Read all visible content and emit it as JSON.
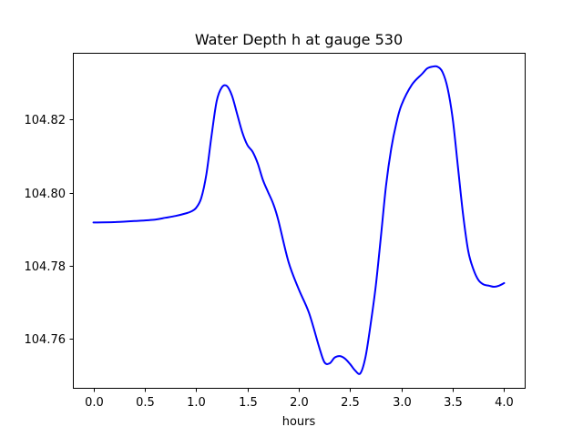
{
  "chart_data": {
    "type": "line",
    "title": "Water Depth h at gauge 530",
    "xlabel": "hours",
    "ylabel": "",
    "xlim": [
      -0.2,
      4.2
    ],
    "ylim": [
      104.7465,
      104.8383
    ],
    "x_ticks": [
      0.0,
      0.5,
      1.0,
      1.5,
      2.0,
      2.5,
      3.0,
      3.5,
      4.0
    ],
    "x_tick_labels": [
      "0.0",
      "0.5",
      "1.0",
      "1.5",
      "2.0",
      "2.5",
      "3.0",
      "3.5",
      "4.0"
    ],
    "y_ticks": [
      104.76,
      104.78,
      104.8,
      104.82
    ],
    "y_tick_labels": [
      "104.76",
      "104.78",
      "104.80",
      "104.82"
    ],
    "grid": false,
    "series": [
      {
        "color": "#0000ff",
        "x": [
          0.0,
          0.2,
          0.4,
          0.6,
          0.7,
          0.8,
          0.9,
          0.95,
          1.0,
          1.05,
          1.1,
          1.15,
          1.2,
          1.25,
          1.3,
          1.35,
          1.4,
          1.45,
          1.5,
          1.55,
          1.6,
          1.65,
          1.7,
          1.75,
          1.8,
          1.9,
          2.0,
          2.1,
          2.2,
          2.25,
          2.3,
          2.35,
          2.4,
          2.45,
          2.5,
          2.55,
          2.6,
          2.65,
          2.7,
          2.75,
          2.8,
          2.85,
          2.9,
          2.95,
          3.0,
          3.1,
          3.2,
          3.25,
          3.3,
          3.35,
          3.4,
          3.45,
          3.5,
          3.55,
          3.6,
          3.65,
          3.7,
          3.75,
          3.8,
          3.85,
          3.9,
          3.95,
          4.0
        ],
        "values": [
          104.7918,
          104.7919,
          104.7922,
          104.7926,
          104.7931,
          104.7936,
          104.7943,
          104.7948,
          104.7958,
          104.7985,
          104.805,
          104.8155,
          104.825,
          104.8288,
          104.8292,
          104.8265,
          104.8215,
          104.8165,
          104.813,
          104.8112,
          104.808,
          104.8035,
          104.8002,
          104.797,
          104.7925,
          104.781,
          104.7735,
          104.767,
          104.7575,
          104.7535,
          104.7532,
          104.7548,
          104.7552,
          104.7545,
          104.753,
          104.7512,
          104.7505,
          104.755,
          104.764,
          104.7745,
          104.788,
          104.802,
          104.812,
          104.819,
          104.824,
          104.8295,
          104.8325,
          104.834,
          104.8345,
          104.8345,
          104.833,
          104.8285,
          104.82,
          104.807,
          104.794,
          104.784,
          104.779,
          104.776,
          104.7748,
          104.7745,
          104.7742,
          104.7745,
          104.7752
        ]
      }
    ]
  }
}
